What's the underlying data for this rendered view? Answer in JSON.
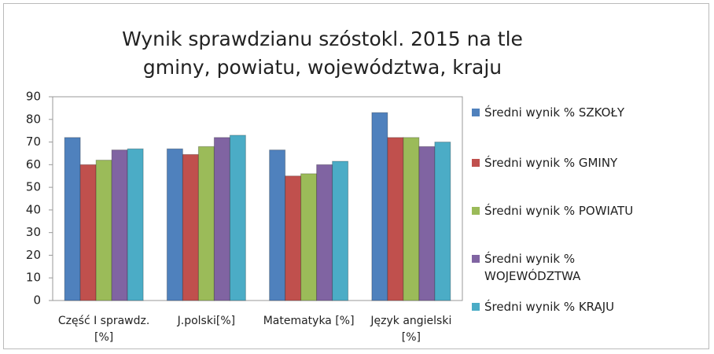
{
  "chart_data": {
    "type": "bar",
    "title": "Wynik sprawdzianu szóstokl. 2015 na tle gminy, powiatu, województwa, kraju",
    "categories": [
      "Część I sprawdz.[%]",
      "J.polski[%]",
      "Matematyka [%]",
      "Język angielski [%]"
    ],
    "series": [
      {
        "name": "Średni wynik % SZKOŁY",
        "color": "#4f81bd",
        "values": [
          72,
          67,
          66.5,
          83
        ]
      },
      {
        "name": "Średni wynik % GMINY",
        "color": "#c0504d",
        "values": [
          60,
          64.5,
          55,
          72
        ]
      },
      {
        "name": "Średni wynik % POWIATU",
        "color": "#9bbb59",
        "values": [
          62,
          68,
          56,
          72
        ]
      },
      {
        "name": "Średni wynik % WOJEWÓDZTWA",
        "color": "#8064a2",
        "values": [
          66.5,
          72,
          60,
          68
        ]
      },
      {
        "name": "Średni wynik % KRAJU",
        "color": "#4bacc6",
        "values": [
          67,
          73,
          61.5,
          70
        ]
      }
    ],
    "ylim": [
      0,
      90
    ],
    "yticks": [
      0,
      10,
      20,
      30,
      40,
      50,
      60,
      70,
      80,
      90
    ],
    "grid": false,
    "legend": "right"
  }
}
